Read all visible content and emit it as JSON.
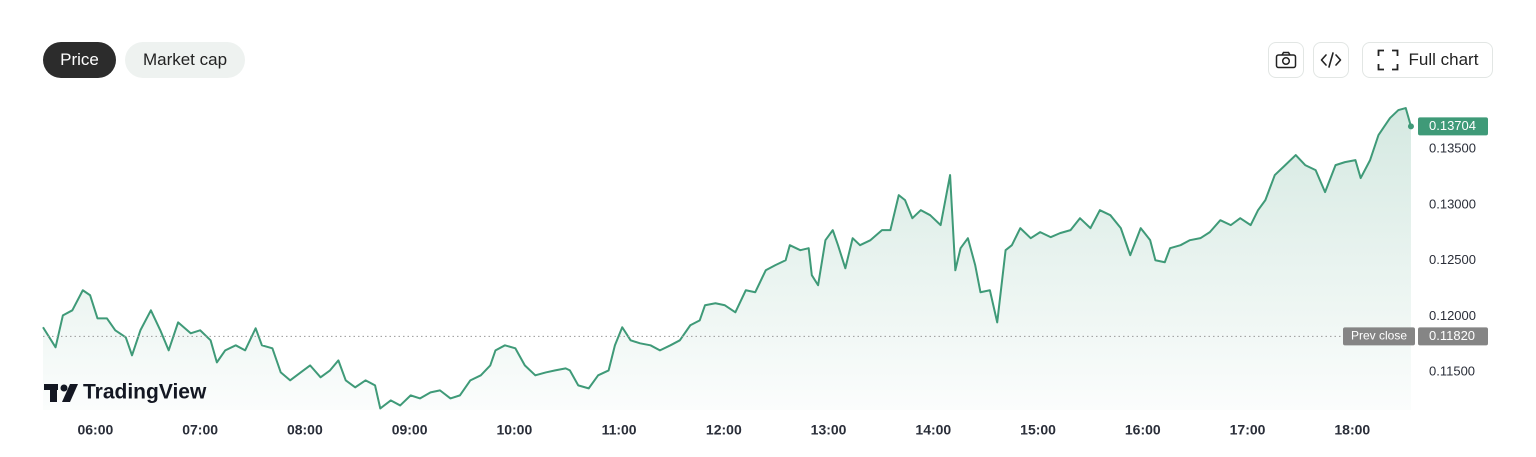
{
  "toolbar": {
    "tabs": [
      "Price",
      "Market cap"
    ],
    "full_chart": "Full chart"
  },
  "watermark": "TradingView",
  "chart_data": {
    "type": "area",
    "color": "#3f9a78",
    "x": [
      5.5,
      5.62,
      5.69,
      5.78,
      5.88,
      5.95,
      6.02,
      6.11,
      6.19,
      6.29,
      6.35,
      6.43,
      6.53,
      6.62,
      6.7,
      6.79,
      6.91,
      7.0,
      7.1,
      7.16,
      7.24,
      7.34,
      7.43,
      7.53,
      7.59,
      7.69,
      7.77,
      7.86,
      7.96,
      8.05,
      8.15,
      8.24,
      8.32,
      8.39,
      8.48,
      8.58,
      8.67,
      8.72,
      8.82,
      8.91,
      9.01,
      9.1,
      9.2,
      9.29,
      9.39,
      9.48,
      9.58,
      9.68,
      9.77,
      9.82,
      9.91,
      10.01,
      10.1,
      10.2,
      10.3,
      10.39,
      10.49,
      10.53,
      10.61,
      10.71,
      10.8,
      10.9,
      10.96,
      11.03,
      11.11,
      11.2,
      11.3,
      11.39,
      11.49,
      11.58,
      11.68,
      11.77,
      11.82,
      11.92,
      12.01,
      12.11,
      12.21,
      12.3,
      12.4,
      12.49,
      12.59,
      12.63,
      12.73,
      12.81,
      12.84,
      12.9,
      12.97,
      13.04,
      13.09,
      13.16,
      13.23,
      13.3,
      13.4,
      13.51,
      13.59,
      13.67,
      13.73,
      13.8,
      13.88,
      13.97,
      14.07,
      14.16,
      14.21,
      14.26,
      14.33,
      14.4,
      14.45,
      14.54,
      14.61,
      14.69,
      14.75,
      14.83,
      14.93,
      15.02,
      15.12,
      15.21,
      15.31,
      15.4,
      15.5,
      15.59,
      15.69,
      15.79,
      15.88,
      15.98,
      16.07,
      16.12,
      16.21,
      16.26,
      16.36,
      16.45,
      16.55,
      16.64,
      16.74,
      16.84,
      16.93,
      17.03,
      17.1,
      17.17,
      17.26,
      17.36,
      17.46,
      17.55,
      17.65,
      17.74,
      17.84,
      17.93,
      18.03,
      18.08,
      18.17,
      18.25,
      18.36,
      18.44,
      18.51,
      18.56
    ],
    "values": [
      0.11902,
      0.11722,
      0.12009,
      0.12054,
      0.12234,
      0.12189,
      0.11982,
      0.11982,
      0.11875,
      0.11812,
      0.1165,
      0.11875,
      0.12054,
      0.11875,
      0.11695,
      0.11946,
      0.11848,
      0.11875,
      0.11785,
      0.11587,
      0.11695,
      0.1174,
      0.11695,
      0.11893,
      0.1174,
      0.11713,
      0.11497,
      0.11426,
      0.11497,
      0.1156,
      0.11453,
      0.11515,
      0.11605,
      0.11426,
      0.11363,
      0.11426,
      0.11381,
      0.11174,
      0.11246,
      0.11201,
      0.11291,
      0.11264,
      0.11318,
      0.11336,
      0.11264,
      0.11291,
      0.11426,
      0.11471,
      0.1156,
      0.11695,
      0.1174,
      0.11713,
      0.1156,
      0.11471,
      0.11497,
      0.11515,
      0.11533,
      0.11515,
      0.11381,
      0.11354,
      0.11471,
      0.11515,
      0.1174,
      0.11902,
      0.11785,
      0.11758,
      0.1174,
      0.11695,
      0.1174,
      0.11785,
      0.1192,
      0.11964,
      0.12099,
      0.12117,
      0.12099,
      0.12036,
      0.12234,
      0.12216,
      0.12413,
      0.12458,
      0.12503,
      0.12638,
      0.12593,
      0.12611,
      0.12369,
      0.12279,
      0.12683,
      0.12773,
      0.12638,
      0.12431,
      0.12701,
      0.12638,
      0.12683,
      0.12773,
      0.12773,
      0.13087,
      0.13042,
      0.1288,
      0.12952,
      0.12907,
      0.12818,
      0.13267,
      0.12413,
      0.12611,
      0.12701,
      0.12458,
      0.12216,
      0.12234,
      0.11946,
      0.12593,
      0.12638,
      0.12791,
      0.12701,
      0.12755,
      0.1271,
      0.12746,
      0.12773,
      0.1288,
      0.12791,
      0.12952,
      0.12907,
      0.12791,
      0.12548,
      0.12791,
      0.12683,
      0.12503,
      0.12485,
      0.12611,
      0.12638,
      0.12683,
      0.12701,
      0.12755,
      0.12862,
      0.12818,
      0.1288,
      0.12818,
      0.12952,
      0.13042,
      0.13267,
      0.13356,
      0.13446,
      0.13356,
      0.13311,
      0.13114,
      0.13356,
      0.13383,
      0.13401,
      0.1324,
      0.13401,
      0.13626,
      0.13778,
      0.1385,
      0.13868,
      0.13704
    ],
    "xlim": [
      5.5,
      18.57
    ],
    "xticks": [
      {
        "value": 6,
        "label": "06:00"
      },
      {
        "value": 7,
        "label": "07:00"
      },
      {
        "value": 8,
        "label": "08:00"
      },
      {
        "value": 9,
        "label": "09:00"
      },
      {
        "value": 10,
        "label": "10:00"
      },
      {
        "value": 11,
        "label": "11:00"
      },
      {
        "value": 12,
        "label": "12:00"
      },
      {
        "value": 13,
        "label": "13:00"
      },
      {
        "value": 14,
        "label": "14:00"
      },
      {
        "value": 15,
        "label": "15:00"
      },
      {
        "value": 16,
        "label": "16:00"
      },
      {
        "value": 17,
        "label": "17:00"
      },
      {
        "value": 18,
        "label": "18:00"
      }
    ],
    "ylim": [
      0.1116,
      0.1394
    ],
    "yticks": [
      {
        "value": 0.115,
        "label": "0.11500"
      },
      {
        "value": 0.12,
        "label": "0.12000"
      },
      {
        "value": 0.125,
        "label": "0.12500"
      },
      {
        "value": 0.13,
        "label": "0.13000"
      },
      {
        "value": 0.135,
        "label": "0.13500"
      }
    ],
    "prev_close": {
      "name": "Prev close",
      "value": 0.1182,
      "label": "0.11820"
    }
  }
}
